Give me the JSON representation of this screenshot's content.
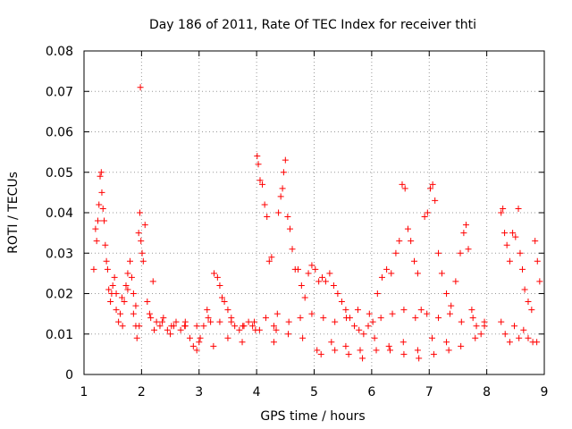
{
  "chart_data": {
    "type": "scatter",
    "title": "Day 186 of 2011, Rate Of TEC Index for receiver thti",
    "xlabel": "GPS time / hours",
    "ylabel": "ROTI / TECUs",
    "xlim": [
      1,
      9
    ],
    "ylim": [
      0,
      0.08
    ],
    "x_ticks": [
      1,
      2,
      3,
      4,
      5,
      6,
      7,
      8,
      9
    ],
    "x_tick_labels": [
      "1",
      "2",
      "3",
      "4",
      "5",
      "6",
      "7",
      "8",
      "9"
    ],
    "y_ticks": [
      0,
      0.01,
      0.02,
      0.03,
      0.04,
      0.05,
      0.06,
      0.07,
      0.08
    ],
    "y_tick_labels": [
      "0",
      "0.01",
      "0.02",
      "0.03",
      "0.04",
      "0.05",
      "0.06",
      "0.07",
      "0.08"
    ],
    "grid": true,
    "marker": "+",
    "colors": {
      "points": "#ff0000",
      "grid": "#999999",
      "axes": "#000000"
    },
    "series": [
      {
        "name": "ROTI",
        "x": [
          1.17,
          1.2,
          1.22,
          1.24,
          1.26,
          1.28,
          1.3,
          1.31,
          1.33,
          1.35,
          1.37,
          1.39,
          1.41,
          1.43,
          1.46,
          1.48,
          1.5,
          1.53,
          1.56,
          1.6,
          1.63,
          1.67,
          1.7,
          1.73,
          1.76,
          1.8,
          1.83,
          1.86,
          1.9,
          1.92,
          1.95,
          1.97,
          1.99,
          2.01,
          2.03,
          2.06,
          2.1,
          2.14,
          2.2,
          2.26,
          2.32,
          2.38,
          2.45,
          2.52,
          2.6,
          2.68,
          2.76,
          2.84,
          2.9,
          2.96,
          3.02,
          3.08,
          3.14,
          3.2,
          3.26,
          3.32,
          3.36,
          3.4,
          3.44,
          3.5,
          3.56,
          3.62,
          3.7,
          3.78,
          3.86,
          3.93,
          3.98,
          4.01,
          4.03,
          4.06,
          4.1,
          4.14,
          4.18,
          4.22,
          4.26,
          4.3,
          4.34,
          4.38,
          4.42,
          4.45,
          4.47,
          4.5,
          4.54,
          4.58,
          4.62,
          4.67,
          4.72,
          4.78,
          4.84,
          4.9,
          4.96,
          5.02,
          5.08,
          5.14,
          5.2,
          5.27,
          5.34,
          5.41,
          5.48,
          5.55,
          5.62,
          5.7,
          5.78,
          5.86,
          5.94,
          6.02,
          6.1,
          6.18,
          6.26,
          6.34,
          6.42,
          6.48,
          6.53,
          6.58,
          6.63,
          6.68,
          6.74,
          6.8,
          6.86,
          6.92,
          6.97,
          7.02,
          7.06,
          7.1,
          7.16,
          7.22,
          7.3,
          7.38,
          7.46,
          7.54,
          7.6,
          7.64,
          7.68,
          7.74,
          7.82,
          7.9,
          7.96,
          8.25,
          8.28,
          8.31,
          8.35,
          8.4,
          8.45,
          8.5,
          8.55,
          8.58,
          8.62,
          8.66,
          8.72,
          8.78,
          8.84,
          8.88,
          8.92,
          8.25,
          8.32,
          8.4,
          8.48,
          8.56,
          8.64,
          8.72,
          8.8,
          8.87,
          1.9,
          2.22,
          2.5,
          2.75,
          3.0,
          3.25,
          3.5,
          3.75,
          4.05,
          4.3,
          4.55,
          4.8,
          5.05,
          5.3,
          5.55,
          5.8,
          6.05,
          6.3,
          6.55,
          6.8,
          7.05,
          7.3,
          7.55,
          7.8,
          5.12,
          5.36,
          5.6,
          5.84,
          6.08,
          6.32,
          6.56,
          6.82,
          7.08,
          7.34,
          1.56,
          1.66,
          1.76,
          1.86,
          1.96,
          2.16,
          2.36,
          2.56,
          2.76,
          2.96,
          3.16,
          3.36,
          3.56,
          3.76,
          3.96,
          4.16,
          4.36,
          4.56,
          4.76,
          4.96,
          5.16,
          5.36,
          5.56,
          5.76,
          5.96,
          6.16,
          6.36,
          6.56,
          6.76,
          6.96,
          7.16,
          7.36,
          7.56,
          7.76,
          7.96,
          1.98
        ],
        "y": [
          0.026,
          0.036,
          0.033,
          0.038,
          0.042,
          0.049,
          0.05,
          0.045,
          0.041,
          0.038,
          0.032,
          0.028,
          0.026,
          0.021,
          0.018,
          0.02,
          0.022,
          0.024,
          0.016,
          0.013,
          0.015,
          0.012,
          0.018,
          0.022,
          0.025,
          0.028,
          0.024,
          0.02,
          0.012,
          0.009,
          0.035,
          0.04,
          0.033,
          0.03,
          0.028,
          0.037,
          0.018,
          0.015,
          0.023,
          0.013,
          0.012,
          0.014,
          0.011,
          0.012,
          0.013,
          0.011,
          0.012,
          0.009,
          0.007,
          0.006,
          0.009,
          0.012,
          0.016,
          0.013,
          0.025,
          0.024,
          0.022,
          0.019,
          0.018,
          0.016,
          0.013,
          0.012,
          0.011,
          0.012,
          0.013,
          0.012,
          0.011,
          0.054,
          0.052,
          0.048,
          0.047,
          0.042,
          0.039,
          0.028,
          0.029,
          0.012,
          0.011,
          0.04,
          0.044,
          0.046,
          0.05,
          0.053,
          0.039,
          0.036,
          0.031,
          0.026,
          0.026,
          0.022,
          0.019,
          0.025,
          0.027,
          0.026,
          0.023,
          0.024,
          0.023,
          0.025,
          0.022,
          0.02,
          0.018,
          0.016,
          0.014,
          0.012,
          0.011,
          0.01,
          0.012,
          0.013,
          0.02,
          0.024,
          0.026,
          0.025,
          0.03,
          0.033,
          0.047,
          0.046,
          0.036,
          0.033,
          0.028,
          0.025,
          0.016,
          0.039,
          0.04,
          0.046,
          0.047,
          0.043,
          0.03,
          0.025,
          0.02,
          0.017,
          0.023,
          0.03,
          0.035,
          0.037,
          0.031,
          0.016,
          0.012,
          0.01,
          0.012,
          0.04,
          0.041,
          0.035,
          0.032,
          0.028,
          0.035,
          0.034,
          0.041,
          0.03,
          0.026,
          0.021,
          0.018,
          0.016,
          0.033,
          0.028,
          0.023,
          0.013,
          0.01,
          0.008,
          0.012,
          0.009,
          0.011,
          0.009,
          0.008,
          0.008,
          0.017,
          0.011,
          0.01,
          0.012,
          0.008,
          0.007,
          0.009,
          0.008,
          0.011,
          0.008,
          0.01,
          0.009,
          0.006,
          0.008,
          0.007,
          0.006,
          0.009,
          0.007,
          0.008,
          0.006,
          0.009,
          0.008,
          0.007,
          0.009,
          0.005,
          0.006,
          0.005,
          0.004,
          0.006,
          0.006,
          0.005,
          0.004,
          0.005,
          0.006,
          0.02,
          0.019,
          0.021,
          0.015,
          0.012,
          0.014,
          0.013,
          0.012,
          0.013,
          0.012,
          0.014,
          0.013,
          0.014,
          0.012,
          0.013,
          0.014,
          0.015,
          0.013,
          0.014,
          0.015,
          0.014,
          0.013,
          0.014,
          0.016,
          0.015,
          0.014,
          0.015,
          0.016,
          0.014,
          0.015,
          0.014,
          0.015,
          0.013,
          0.014,
          0.013,
          0.071
        ]
      }
    ]
  }
}
